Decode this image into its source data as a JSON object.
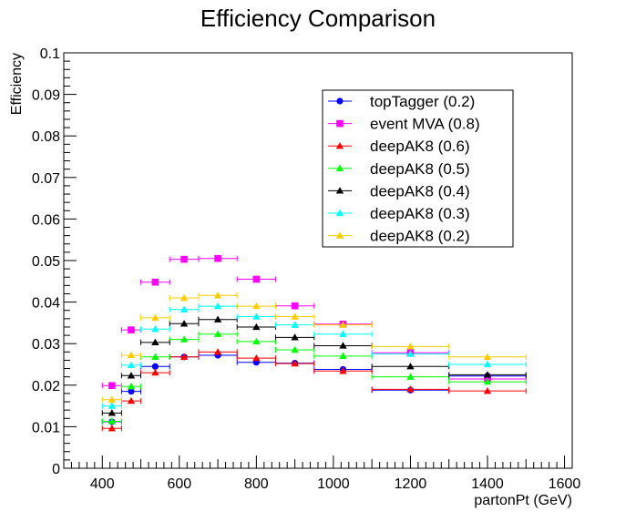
{
  "chart_data": {
    "type": "scatter",
    "title": "Efficiency Comparison",
    "xlabel": "partonPt (GeV)",
    "ylabel": "Efficiency",
    "xlim": [
      300,
      1620
    ],
    "ylim": [
      0,
      0.1
    ],
    "xticks": [
      400,
      600,
      800,
      1000,
      1200,
      1400,
      1600
    ],
    "xtick_labels": [
      "400",
      "600",
      "800",
      "1000",
      "1200",
      "1400",
      "1600"
    ],
    "yticks": [
      0,
      0.01,
      0.02,
      0.03,
      0.04,
      0.05,
      0.06,
      0.07,
      0.08,
      0.09,
      0.1
    ],
    "ytick_labels": [
      "0",
      "0.01",
      "0.02",
      "0.03",
      "0.04",
      "0.05",
      "0.06",
      "0.07",
      "0.08",
      "0.09",
      "0.1"
    ],
    "grid": false,
    "legend_position": "top-right",
    "x": [
      425,
      475,
      537.5,
      612.5,
      700,
      800,
      900,
      1025,
      1200,
      1400
    ],
    "x_err": [
      25,
      25,
      37.5,
      37.5,
      50,
      50,
      50,
      75,
      100,
      100
    ],
    "series": [
      {
        "name": "topTagger (0.2)",
        "color": "#0000ff",
        "marker": "circle",
        "values": [
          0.0112,
          0.0185,
          0.0245,
          0.0268,
          0.0272,
          0.0255,
          0.0253,
          0.0238,
          0.0188,
          0.0222
        ]
      },
      {
        "name": "event MVA (0.8)",
        "color": "#ff00ff",
        "marker": "square",
        "values": [
          0.0199,
          0.0333,
          0.0448,
          0.0503,
          0.0505,
          0.0455,
          0.0391,
          0.0347,
          0.0278,
          0.0215
        ]
      },
      {
        "name": "deepAK8 (0.6)",
        "color": "#ff0000",
        "marker": "triangle",
        "values": [
          0.0096,
          0.0162,
          0.023,
          0.0268,
          0.028,
          0.0265,
          0.0252,
          0.0234,
          0.019,
          0.0186
        ]
      },
      {
        "name": "deepAK8 (0.5)",
        "color": "#00ff00",
        "marker": "triangle",
        "values": [
          0.0113,
          0.0197,
          0.0268,
          0.031,
          0.0323,
          0.0305,
          0.0285,
          0.027,
          0.022,
          0.0208
        ]
      },
      {
        "name": "deepAK8 (0.4)",
        "color": "#000000",
        "marker": "triangle",
        "values": [
          0.0133,
          0.0223,
          0.0303,
          0.0348,
          0.0358,
          0.034,
          0.0315,
          0.0295,
          0.0245,
          0.0225
        ]
      },
      {
        "name": "deepAK8 (0.3)",
        "color": "#00ffff",
        "marker": "triangle",
        "values": [
          0.015,
          0.0248,
          0.0335,
          0.0382,
          0.039,
          0.0365,
          0.0345,
          0.0323,
          0.0275,
          0.025
        ]
      },
      {
        "name": "deepAK8 (0.2)",
        "color": "#ffcc00",
        "marker": "triangle",
        "values": [
          0.0165,
          0.0272,
          0.0362,
          0.041,
          0.0416,
          0.039,
          0.0365,
          0.0345,
          0.0293,
          0.0268
        ]
      }
    ]
  }
}
